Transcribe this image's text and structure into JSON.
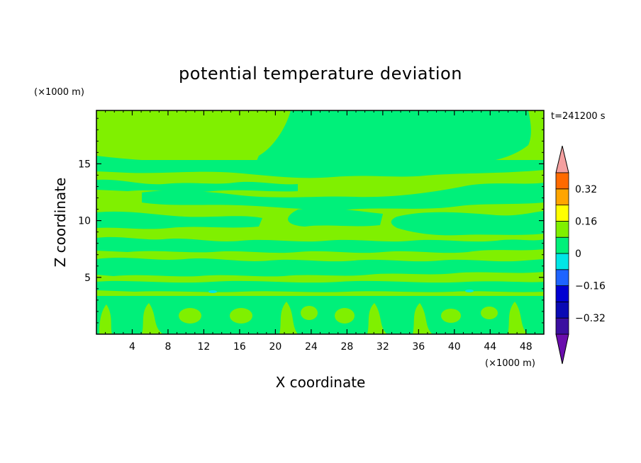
{
  "chart_data": {
    "type": "heatmap",
    "title": "potential temperature deviation",
    "xlabel": "X coordinate",
    "ylabel": "Z coordinate",
    "x_unit": "(×1000 m)",
    "y_unit": "(×1000 m)",
    "time_label": "t=241200 s",
    "xlim": [
      0,
      50
    ],
    "ylim": [
      0,
      19.7
    ],
    "x_ticks": [
      4,
      8,
      12,
      16,
      20,
      24,
      28,
      32,
      36,
      40,
      44,
      48
    ],
    "y_ticks": [
      5,
      10,
      15
    ],
    "colorbar": {
      "levels": [
        -0.4,
        -0.32,
        -0.24,
        -0.16,
        -0.08,
        0,
        0.08,
        0.16,
        0.24,
        0.32,
        0.4
      ],
      "colors": [
        "#6a0dad",
        "#3b0fa0",
        "#0a0ab4",
        "#0000d2",
        "#1e64ff",
        "#00e6e6",
        "#00f07a",
        "#80f000",
        "#ffff00",
        "#ffa500",
        "#ff6a00",
        "#ff2020",
        "#f4a0a0"
      ],
      "labels": [
        "0.32",
        "0.16",
        "0",
        "−0.16",
        "−0.32"
      ],
      "label_values": [
        0.32,
        0.16,
        0,
        -0.16,
        -0.32
      ]
    },
    "field_colors": {
      "positive": "#80f000",
      "negative": "#00f07a",
      "weak_negative": "#00e6e6"
    }
  }
}
